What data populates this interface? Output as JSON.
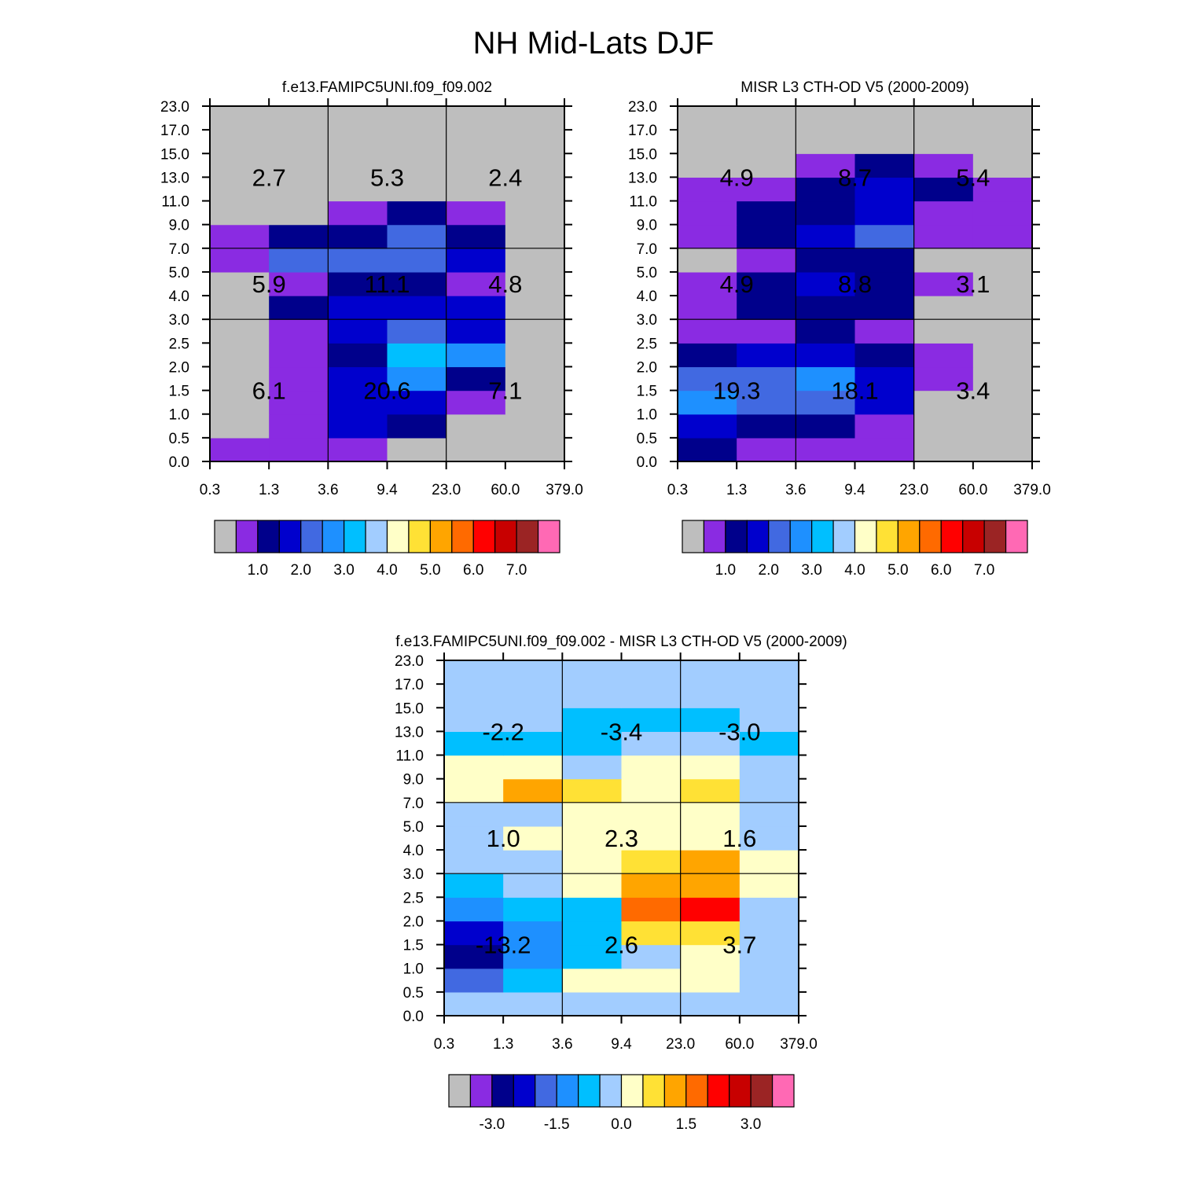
{
  "page_title": "NH Mid-Lats DJF",
  "chart_data": [
    {
      "type": "heatmap",
      "title": "f.e13.FAMIPC5UNI.f09_f09.002",
      "x_ticks": [
        "0.3",
        "1.3",
        "3.6",
        "9.4",
        "23.0",
        "60.0",
        "379.0"
      ],
      "y_ticks": [
        "0.0",
        "0.5",
        "1.0",
        "1.5",
        "2.0",
        "2.5",
        "3.0",
        "4.0",
        "5.0",
        "7.0",
        "9.0",
        "11.0",
        "13.0",
        "15.0",
        "17.0",
        "23.0"
      ],
      "color_scale": [
        "#bebebe",
        "#8a2be2",
        "#00008b",
        "#0000cd",
        "#4169e1",
        "#1e90ff",
        "#00bfff",
        "#a2cdff",
        "#ffffc8",
        "#ffe135",
        "#ffa500",
        "#ff6a00",
        "#ff0000",
        "#c80000",
        "#9b2424",
        "#ff69b4"
      ],
      "colorbar_labels": [
        "1.0",
        "2.0",
        "3.0",
        "4.0",
        "5.0",
        "6.0",
        "7.0"
      ],
      "cell_classes": [
        [
          1,
          1,
          1,
          0,
          0,
          0
        ],
        [
          0,
          1,
          3,
          2,
          0,
          0
        ],
        [
          0,
          1,
          3,
          3,
          1,
          0
        ],
        [
          0,
          1,
          3,
          5,
          2,
          0
        ],
        [
          0,
          1,
          2,
          6,
          5,
          0
        ],
        [
          0,
          1,
          3,
          4,
          3,
          0
        ],
        [
          0,
          2,
          3,
          3,
          3,
          0
        ],
        [
          0,
          1,
          2,
          2,
          1,
          0
        ],
        [
          1,
          4,
          4,
          4,
          3,
          0
        ],
        [
          1,
          2,
          2,
          4,
          2,
          0
        ],
        [
          0,
          0,
          1,
          2,
          1,
          0
        ],
        [
          0,
          0,
          0,
          0,
          0,
          0
        ],
        [
          0,
          0,
          0,
          0,
          0,
          0
        ],
        [
          0,
          0,
          0,
          0,
          0,
          0
        ],
        [
          0,
          0,
          0,
          0,
          0,
          0
        ]
      ],
      "box_values": [
        [
          "6.1",
          "20.6",
          "7.1"
        ],
        [
          "5.9",
          "11.1",
          "4.8"
        ],
        [
          "2.7",
          "5.3",
          "2.4"
        ]
      ]
    },
    {
      "type": "heatmap",
      "title": "MISR L3 CTH-OD V5 (2000-2009)",
      "x_ticks": [
        "0.3",
        "1.3",
        "3.6",
        "9.4",
        "23.0",
        "60.0",
        "379.0"
      ],
      "y_ticks": [
        "0.0",
        "0.5",
        "1.0",
        "1.5",
        "2.0",
        "2.5",
        "3.0",
        "4.0",
        "5.0",
        "7.0",
        "9.0",
        "11.0",
        "13.0",
        "15.0",
        "17.0",
        "23.0"
      ],
      "color_scale": [
        "#bebebe",
        "#8a2be2",
        "#00008b",
        "#0000cd",
        "#4169e1",
        "#1e90ff",
        "#00bfff",
        "#a2cdff",
        "#ffffc8",
        "#ffe135",
        "#ffa500",
        "#ff6a00",
        "#ff0000",
        "#c80000",
        "#9b2424",
        "#ff69b4"
      ],
      "colorbar_labels": [
        "1.0",
        "2.0",
        "3.0",
        "4.0",
        "5.0",
        "6.0",
        "7.0"
      ],
      "cell_classes": [
        [
          2,
          1,
          1,
          1,
          0,
          0
        ],
        [
          3,
          2,
          2,
          1,
          0,
          0
        ],
        [
          5,
          4,
          4,
          3,
          0,
          0
        ],
        [
          4,
          4,
          5,
          3,
          1,
          0
        ],
        [
          2,
          3,
          3,
          2,
          1,
          0
        ],
        [
          1,
          1,
          2,
          1,
          0,
          0
        ],
        [
          1,
          2,
          2,
          2,
          0,
          0
        ],
        [
          1,
          2,
          3,
          2,
          1,
          0
        ],
        [
          0,
          1,
          2,
          2,
          0,
          0
        ],
        [
          1,
          2,
          3,
          4,
          1,
          1
        ],
        [
          1,
          2,
          2,
          3,
          1,
          1
        ],
        [
          1,
          1,
          2,
          3,
          2,
          1
        ],
        [
          0,
          0,
          1,
          2,
          1,
          0
        ],
        [
          0,
          0,
          0,
          0,
          0,
          0
        ],
        [
          0,
          0,
          0,
          0,
          0,
          0
        ]
      ],
      "box_values": [
        [
          "19.3",
          "18.1",
          "3.4"
        ],
        [
          "4.9",
          "8.8",
          "3.1"
        ],
        [
          "4.9",
          "8.7",
          "5.4"
        ]
      ]
    },
    {
      "type": "heatmap",
      "title": "f.e13.FAMIPC5UNI.f09_f09.002 - MISR L3 CTH-OD V5 (2000-2009)",
      "x_ticks": [
        "0.3",
        "1.3",
        "3.6",
        "9.4",
        "23.0",
        "60.0",
        "379.0"
      ],
      "y_ticks": [
        "0.0",
        "0.5",
        "1.0",
        "1.5",
        "2.0",
        "2.5",
        "3.0",
        "4.0",
        "5.0",
        "7.0",
        "9.0",
        "11.0",
        "13.0",
        "15.0",
        "17.0",
        "23.0"
      ],
      "color_scale": [
        "#bebebe",
        "#8a2be2",
        "#00008b",
        "#0000cd",
        "#4169e1",
        "#1e90ff",
        "#00bfff",
        "#a2cdff",
        "#ffffc8",
        "#ffe135",
        "#ffa500",
        "#ff6a00",
        "#ff0000",
        "#c80000",
        "#9b2424",
        "#ff69b4"
      ],
      "colorbar_labels": [
        "-3.0",
        "-1.5",
        "0.0",
        "1.5",
        "3.0"
      ],
      "cell_classes": [
        [
          7,
          7,
          7,
          7,
          7,
          7
        ],
        [
          4,
          6,
          8,
          8,
          8,
          7
        ],
        [
          2,
          5,
          6,
          7,
          8,
          7
        ],
        [
          3,
          5,
          6,
          9,
          9,
          7
        ],
        [
          5,
          6,
          6,
          11,
          12,
          7
        ],
        [
          6,
          7,
          8,
          10,
          10,
          8
        ],
        [
          7,
          7,
          8,
          9,
          10,
          8
        ],
        [
          7,
          8,
          8,
          8,
          8,
          7
        ],
        [
          7,
          7,
          8,
          8,
          8,
          7
        ],
        [
          8,
          10,
          9,
          8,
          9,
          7
        ],
        [
          8,
          8,
          7,
          8,
          8,
          7
        ],
        [
          6,
          6,
          6,
          7,
          7,
          6
        ],
        [
          7,
          7,
          6,
          6,
          6,
          7
        ],
        [
          7,
          7,
          7,
          7,
          7,
          7
        ],
        [
          7,
          7,
          7,
          7,
          7,
          7
        ]
      ],
      "box_values": [
        [
          "-13.2",
          "2.6",
          "3.7"
        ],
        [
          "1.0",
          "2.3",
          "1.6"
        ],
        [
          "-2.2",
          "-3.4",
          "-3.0"
        ]
      ]
    }
  ]
}
